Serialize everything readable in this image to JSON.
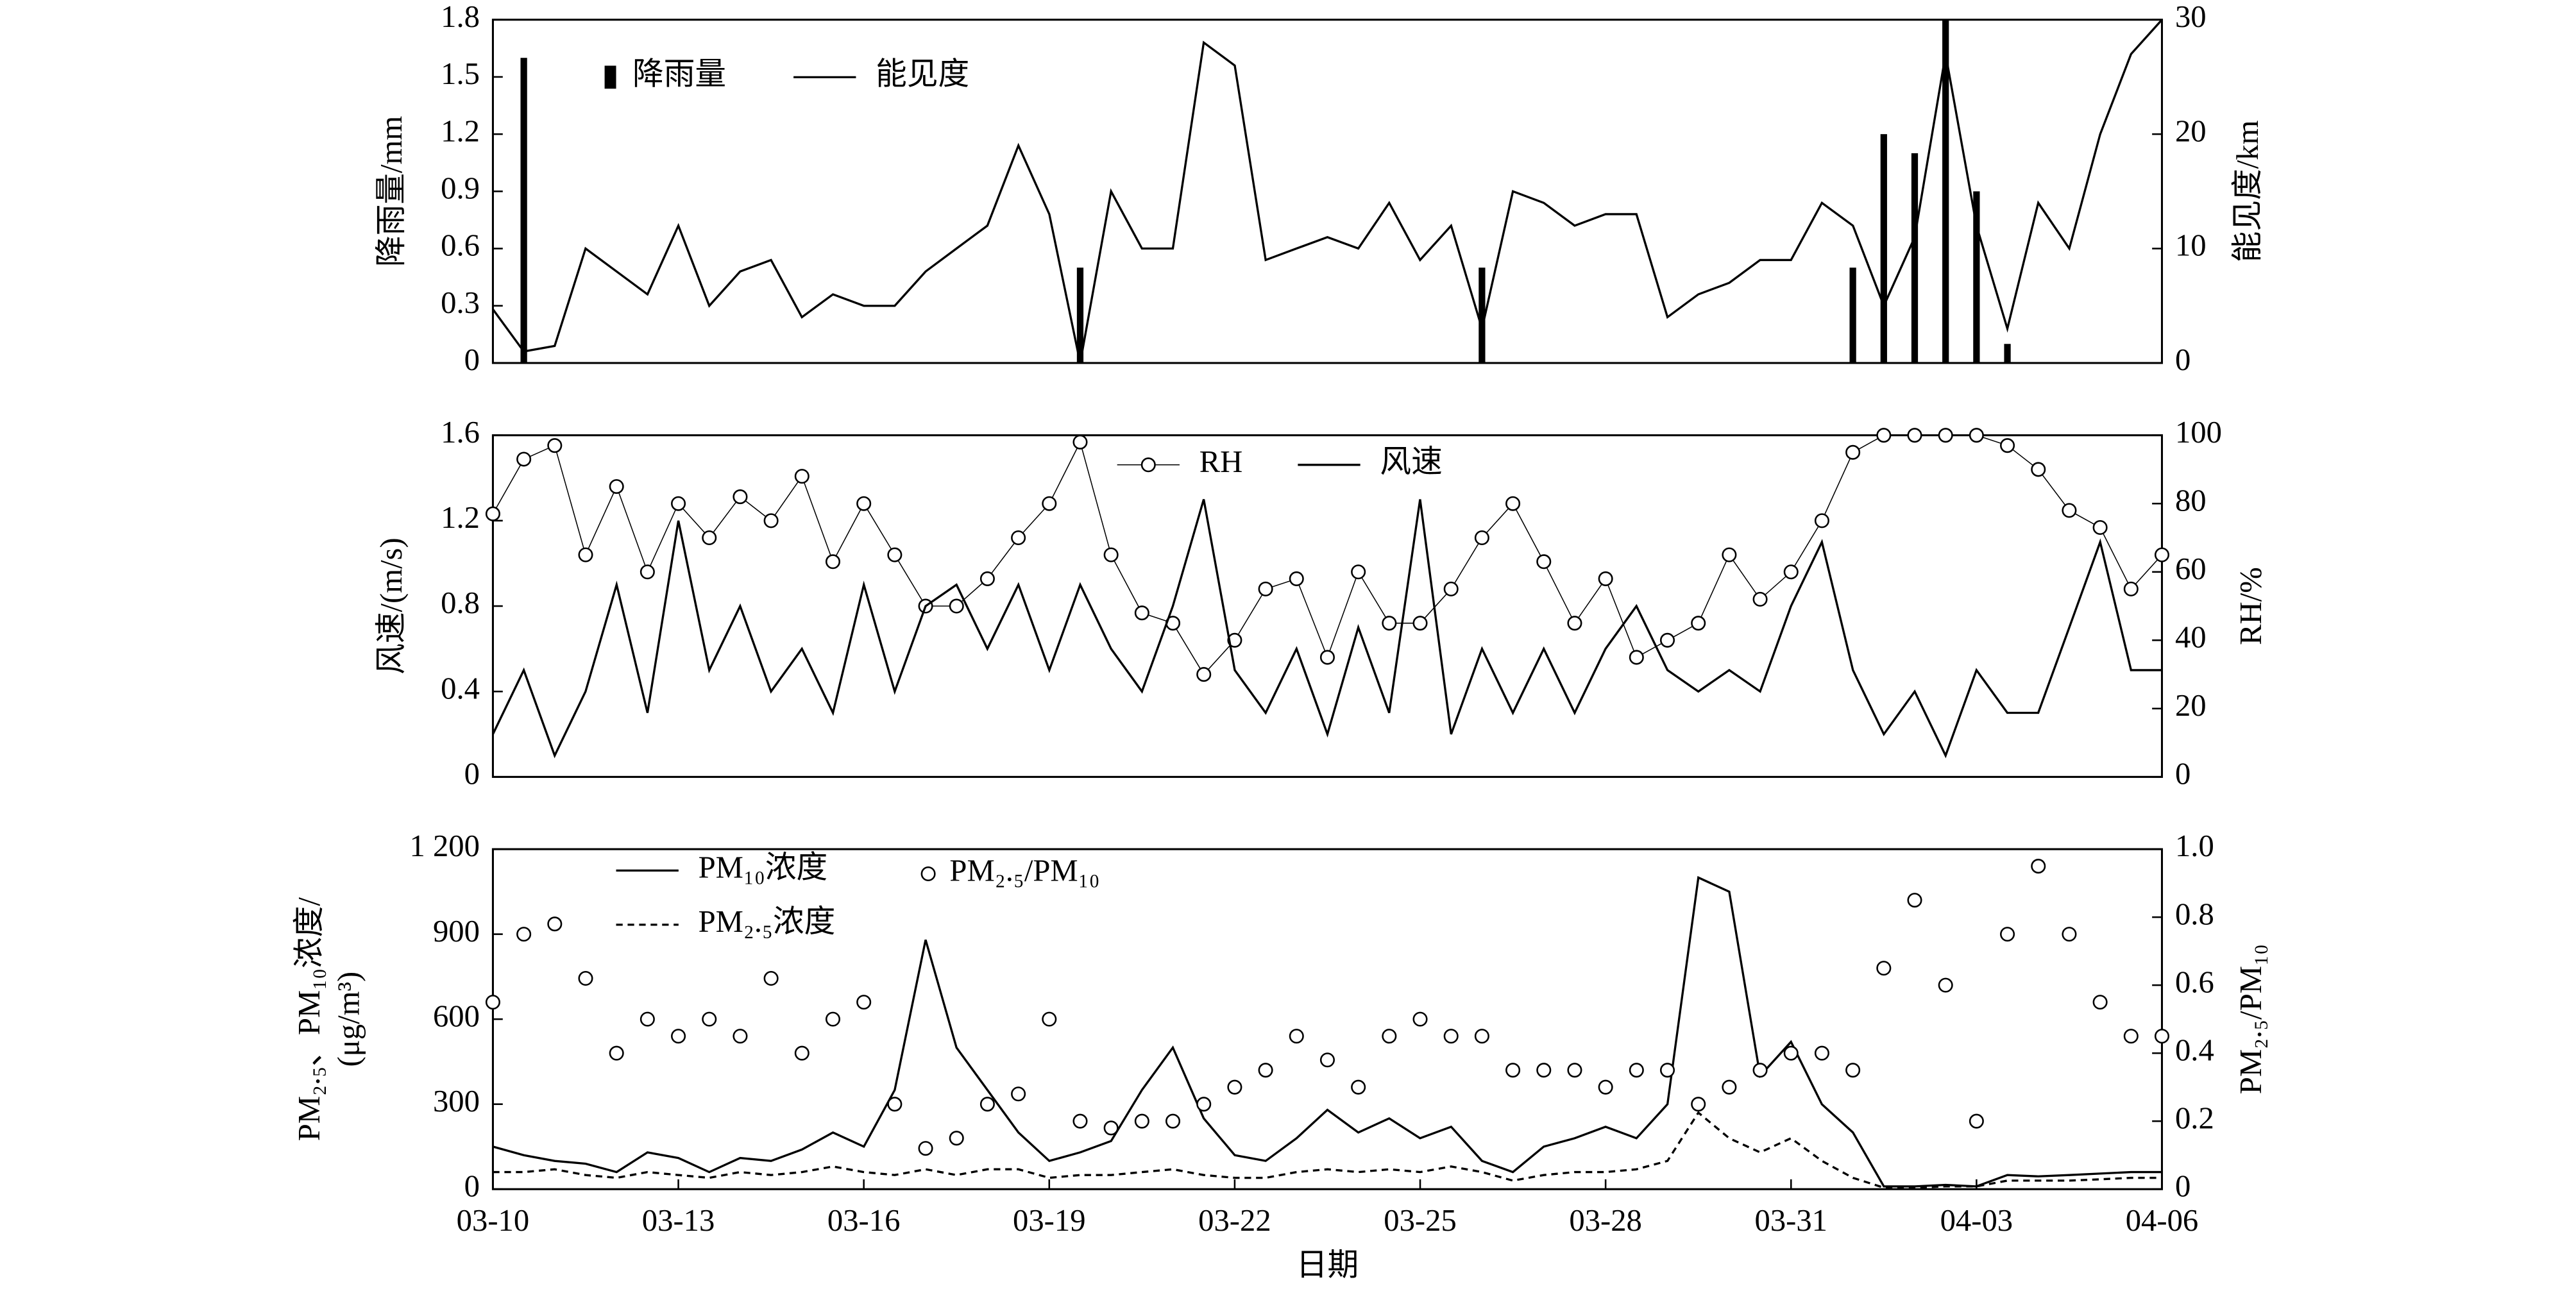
{
  "chart_data": [
    {
      "type": "combo",
      "ylabel": "降雨量/mm",
      "y2label": "能见度/km",
      "xlim": [
        0,
        27
      ],
      "ylim": [
        0,
        1.8
      ],
      "yticks": [
        0,
        0.3,
        0.6,
        0.9,
        1.2,
        1.5,
        1.8
      ],
      "y2lim": [
        0,
        30
      ],
      "y2ticks": [
        0,
        10,
        20,
        30
      ],
      "x": [
        0,
        0.5,
        1,
        1.5,
        2,
        2.5,
        3,
        3.5,
        4,
        4.5,
        5,
        5.5,
        6,
        6.5,
        7,
        7.5,
        8,
        8.5,
        9,
        9.5,
        10,
        10.5,
        11,
        11.5,
        12,
        12.5,
        13,
        13.5,
        14,
        14.5,
        15,
        15.5,
        16,
        16.5,
        17,
        17.5,
        18,
        18.5,
        19,
        19.5,
        20,
        20.5,
        21,
        21.5,
        22,
        22.5,
        23,
        23.5,
        24,
        24.5,
        25,
        25.5,
        26,
        26.5,
        27
      ],
      "series": [
        {
          "name": "降雨量",
          "type": "bar",
          "color": "#000000",
          "values": [
            0,
            1.6,
            0,
            0,
            0,
            0,
            0,
            0,
            0,
            0,
            0,
            0,
            0,
            0,
            0,
            0,
            0,
            0,
            0,
            0.5,
            0,
            0,
            0,
            0,
            0,
            0,
            0,
            0,
            0,
            0,
            0,
            0,
            0.5,
            0,
            0,
            0,
            0,
            0,
            0,
            0,
            0,
            0,
            0,
            0,
            0.5,
            1.2,
            1.1,
            1.8,
            0.9,
            0.1,
            0,
            0,
            0,
            0,
            0
          ]
        },
        {
          "name": "能见度",
          "type": "line",
          "axis": "y2",
          "color": "#000000",
          "values": [
            4.7,
            1,
            1.5,
            10,
            8,
            6,
            12,
            5,
            8,
            9,
            4,
            6,
            5,
            5,
            8,
            10,
            12,
            19,
            13,
            0,
            15,
            10,
            10,
            28,
            26,
            9,
            10,
            11,
            10,
            14,
            9,
            12,
            3,
            15,
            14,
            12,
            13,
            13,
            4,
            6,
            7,
            9,
            9,
            14,
            12,
            5,
            11,
            27,
            12,
            3,
            14,
            10,
            20,
            27,
            30
          ]
        }
      ]
    },
    {
      "type": "combo",
      "ylabel": "风速/(m/s)",
      "y2label": "RH/%",
      "xlim": [
        0,
        27
      ],
      "ylim": [
        0,
        1.6
      ],
      "yticks": [
        0,
        0.4,
        0.8,
        1.2,
        1.6
      ],
      "y2lim": [
        0,
        100
      ],
      "y2ticks": [
        0,
        20,
        40,
        60,
        80,
        100
      ],
      "x": [
        0,
        0.5,
        1,
        1.5,
        2,
        2.5,
        3,
        3.5,
        4,
        4.5,
        5,
        5.5,
        6,
        6.5,
        7,
        7.5,
        8,
        8.5,
        9,
        9.5,
        10,
        10.5,
        11,
        11.5,
        12,
        12.5,
        13,
        13.5,
        14,
        14.5,
        15,
        15.5,
        16,
        16.5,
        17,
        17.5,
        18,
        18.5,
        19,
        19.5,
        20,
        20.5,
        21,
        21.5,
        22,
        22.5,
        23,
        23.5,
        24,
        24.5,
        25,
        25.5,
        26,
        26.5,
        27
      ],
      "series": [
        {
          "name": "RH",
          "type": "line-markers",
          "axis": "y2",
          "color": "#000000",
          "values": [
            77,
            93,
            97,
            65,
            85,
            60,
            80,
            70,
            82,
            75,
            88,
            63,
            80,
            65,
            50,
            50,
            58,
            70,
            80,
            98,
            65,
            48,
            45,
            30,
            40,
            55,
            58,
            35,
            60,
            45,
            45,
            55,
            70,
            80,
            63,
            45,
            58,
            35,
            40,
            45,
            65,
            52,
            60,
            75,
            95,
            100,
            100,
            100,
            100,
            97,
            90,
            78,
            73,
            55,
            65
          ]
        },
        {
          "name": "风速",
          "type": "line",
          "color": "#000000",
          "values": [
            0.2,
            0.5,
            0.1,
            0.4,
            0.9,
            0.3,
            1.2,
            0.5,
            0.8,
            0.4,
            0.6,
            0.3,
            0.9,
            0.4,
            0.8,
            0.9,
            0.6,
            0.9,
            0.5,
            0.9,
            0.6,
            0.4,
            0.8,
            1.3,
            0.5,
            0.3,
            0.6,
            0.2,
            0.7,
            0.3,
            1.3,
            0.2,
            0.6,
            0.3,
            0.6,
            0.3,
            0.6,
            0.8,
            0.5,
            0.4,
            0.5,
            0.4,
            0.8,
            1.1,
            0.5,
            0.2,
            0.4,
            0.1,
            0.5,
            0.3,
            0.3,
            0.7,
            1.1,
            0.5,
            0.5
          ]
        }
      ]
    },
    {
      "type": "combo",
      "ylabel": [
        "PM₂.₅、PM₁₀浓度/",
        "(μg/m³)"
      ],
      "y2label": "PM₂.₅/PM₁₀",
      "xlabel": "日期",
      "xlim": [
        0,
        27
      ],
      "xticks": [
        {
          "value": 0,
          "label": "03-10"
        },
        {
          "value": 3,
          "label": "03-13"
        },
        {
          "value": 6,
          "label": "03-16"
        },
        {
          "value": 9,
          "label": "03-19"
        },
        {
          "value": 12,
          "label": "03-22"
        },
        {
          "value": 15,
          "label": "03-25"
        },
        {
          "value": 18,
          "label": "03-28"
        },
        {
          "value": 21,
          "label": "03-31"
        },
        {
          "value": 24,
          "label": "04-03"
        },
        {
          "value": 27,
          "label": "04-06"
        }
      ],
      "ylim": [
        0,
        1200
      ],
      "yticks": [
        0,
        300,
        600,
        900,
        {
          "value": 1200,
          "label": "1 200"
        }
      ],
      "y2lim": [
        0,
        1
      ],
      "y2ticks": [
        0,
        0.2,
        0.4,
        0.6,
        0.8,
        {
          "value": 1,
          "label": "1.0"
        }
      ],
      "x": [
        0,
        0.5,
        1,
        1.5,
        2,
        2.5,
        3,
        3.5,
        4,
        4.5,
        5,
        5.5,
        6,
        6.5,
        7,
        7.5,
        8,
        8.5,
        9,
        9.5,
        10,
        10.5,
        11,
        11.5,
        12,
        12.5,
        13,
        13.5,
        14,
        14.5,
        15,
        15.5,
        16,
        16.5,
        17,
        17.5,
        18,
        18.5,
        19,
        19.5,
        20,
        20.5,
        21,
        21.5,
        22,
        22.5,
        23,
        23.5,
        24,
        24.5,
        25,
        25.5,
        26,
        26.5,
        27
      ],
      "series": [
        {
          "name": "PM₁₀浓度",
          "type": "line",
          "color": "#000000",
          "values": [
            150,
            120,
            100,
            90,
            60,
            130,
            110,
            60,
            110,
            100,
            140,
            200,
            150,
            350,
            880,
            500,
            350,
            200,
            100,
            130,
            170,
            350,
            500,
            250,
            120,
            100,
            180,
            280,
            200,
            250,
            180,
            220,
            100,
            60,
            150,
            180,
            220,
            180,
            300,
            1100,
            1050,
            400,
            520,
            300,
            200,
            10,
            10,
            15,
            10,
            50,
            45,
            50,
            55,
            60,
            60
          ]
        },
        {
          "name": "PM₂.₅浓度",
          "type": "line",
          "dash": true,
          "color": "#000000",
          "values": [
            60,
            60,
            70,
            50,
            40,
            60,
            50,
            40,
            60,
            50,
            60,
            80,
            60,
            50,
            70,
            50,
            70,
            70,
            40,
            50,
            50,
            60,
            70,
            50,
            40,
            40,
            60,
            70,
            60,
            70,
            60,
            80,
            60,
            30,
            50,
            60,
            60,
            70,
            100,
            270,
            180,
            130,
            180,
            100,
            40,
            5,
            5,
            10,
            10,
            30,
            30,
            30,
            35,
            40,
            40
          ]
        },
        {
          "name": "PM₂.₅/PM₁₀",
          "type": "scatter",
          "axis": "y2",
          "color": "#000000",
          "values": [
            0.55,
            0.75,
            0.78,
            0.62,
            0.4,
            0.5,
            0.45,
            0.5,
            0.45,
            0.62,
            0.4,
            0.5,
            0.55,
            0.25,
            0.12,
            0.15,
            0.25,
            0.28,
            0.5,
            0.2,
            0.18,
            0.2,
            0.2,
            0.25,
            0.3,
            0.35,
            0.45,
            0.38,
            0.3,
            0.45,
            0.5,
            0.45,
            0.45,
            0.35,
            0.35,
            0.35,
            0.3,
            0.35,
            0.35,
            0.25,
            0.3,
            0.35,
            0.4,
            0.4,
            0.35,
            0.65,
            0.85,
            0.6,
            0.2,
            0.75,
            0.95,
            0.75,
            0.55,
            0.45,
            0.45
          ]
        }
      ]
    }
  ]
}
